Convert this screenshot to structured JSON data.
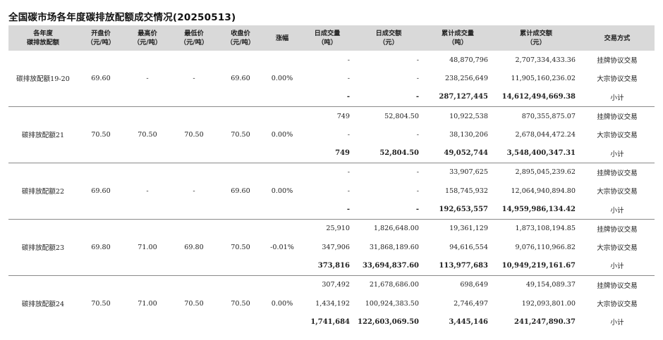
{
  "title": "全国碳市场各年度碳排放配额成交情况(20250513)",
  "headers": [
    [
      "各年度",
      "碳排放配额"
    ],
    [
      "开盘价",
      "（元/吨）"
    ],
    [
      "最高价",
      "（元/吨）"
    ],
    [
      "最低价",
      "（元/吨）"
    ],
    [
      "收盘价",
      "（元/吨）"
    ],
    [
      "涨幅",
      ""
    ],
    [
      "日成交量",
      "（吨）"
    ],
    [
      "日成交额",
      "（元）"
    ],
    [
      "累计成交量",
      "（吨）"
    ],
    [
      "累计成交额",
      "（元）"
    ],
    [
      "交易方式",
      ""
    ]
  ],
  "groups": [
    {
      "name": "碳排放配额19-20",
      "open": "69.60",
      "high": "-",
      "low": "-",
      "close": "69.60",
      "change": "0.00%",
      "rows": [
        {
          "vol": "-",
          "amt": "-",
          "cum_vol": "48,870,796",
          "cum_amt": "2,707,334,433.36",
          "type": "挂牌协议交易"
        },
        {
          "vol": "-",
          "amt": "-",
          "cum_vol": "238,256,649",
          "cum_amt": "11,905,160,236.02",
          "type": "大宗协议交易"
        },
        {
          "vol": "-",
          "amt": "-",
          "cum_vol": "287,127,445",
          "cum_amt": "14,612,494,669.38",
          "type": "小计"
        }
      ]
    },
    {
      "name": "碳排放配额21",
      "open": "70.50",
      "high": "70.50",
      "low": "70.50",
      "close": "70.50",
      "change": "0.00%",
      "rows": [
        {
          "vol": "749",
          "amt": "52,804.50",
          "cum_vol": "10,922,538",
          "cum_amt": "870,355,875.07",
          "type": "挂牌协议交易"
        },
        {
          "vol": "-",
          "amt": "-",
          "cum_vol": "38,130,206",
          "cum_amt": "2,678,044,472.24",
          "type": "大宗协议交易"
        },
        {
          "vol": "749",
          "amt": "52,804.50",
          "cum_vol": "49,052,744",
          "cum_amt": "3,548,400,347.31",
          "type": "小计"
        }
      ]
    },
    {
      "name": "碳排放配额22",
      "open": "69.60",
      "high": "-",
      "low": "-",
      "close": "69.60",
      "change": "0.00%",
      "rows": [
        {
          "vol": "-",
          "amt": "-",
          "cum_vol": "33,907,625",
          "cum_amt": "2,895,045,239.62",
          "type": "挂牌协议交易"
        },
        {
          "vol": "-",
          "amt": "-",
          "cum_vol": "158,745,932",
          "cum_amt": "12,064,940,894.80",
          "type": "大宗协议交易"
        },
        {
          "vol": "-",
          "amt": "-",
          "cum_vol": "192,653,557",
          "cum_amt": "14,959,986,134.42",
          "type": "小计"
        }
      ]
    },
    {
      "name": "碳排放配额23",
      "open": "69.80",
      "high": "71.00",
      "low": "69.80",
      "close": "70.50",
      "change": "-0.01%",
      "rows": [
        {
          "vol": "25,910",
          "amt": "1,826,648.00",
          "cum_vol": "19,361,129",
          "cum_amt": "1,873,108,194.85",
          "type": "挂牌协议交易"
        },
        {
          "vol": "347,906",
          "amt": "31,868,189.60",
          "cum_vol": "94,616,554",
          "cum_amt": "9,076,110,966.82",
          "type": "大宗协议交易"
        },
        {
          "vol": "373,816",
          "amt": "33,694,837.60",
          "cum_vol": "113,977,683",
          "cum_amt": "10,949,219,161.67",
          "type": "小计"
        }
      ]
    },
    {
      "name": "碳排放配额24",
      "open": "70.50",
      "high": "71.00",
      "low": "70.50",
      "close": "70.50",
      "change": "0.00%",
      "rows": [
        {
          "vol": "307,492",
          "amt": "21,678,686.00",
          "cum_vol": "698,649",
          "cum_amt": "49,154,089.37",
          "type": "挂牌协议交易"
        },
        {
          "vol": "1,434,192",
          "amt": "100,924,383.50",
          "cum_vol": "2,746,497",
          "cum_amt": "192,093,801.00",
          "type": "大宗协议交易"
        },
        {
          "vol": "1,741,684",
          "amt": "122,603,069.50",
          "cum_vol": "3,445,146",
          "cum_amt": "241,247,890.37",
          "type": "小计"
        }
      ]
    }
  ]
}
